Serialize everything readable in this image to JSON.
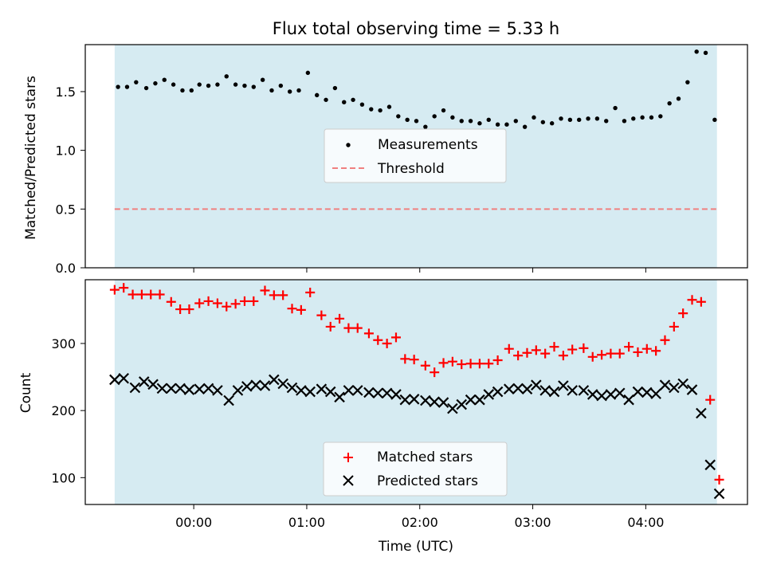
{
  "figure": {
    "title": "Flux total observing time = 5.33 h",
    "xlabel": "Time (UTC)"
  },
  "colors": {
    "shade": "#add8e6",
    "measurements": "#000000",
    "threshold": "#f08080",
    "matched": "#ff0000",
    "predicted": "#000000"
  },
  "chart_data": [
    {
      "type": "scatter",
      "ylabel": "Matched/Predicted stars",
      "x_unit": "hours UTC",
      "xlim": [
        -0.96,
        4.9
      ],
      "ylim": [
        0.0,
        1.9
      ],
      "yticks": [
        0.0,
        0.5,
        1.0,
        1.5
      ],
      "ytick_labels": [
        "0.0",
        "0.5",
        "1.0",
        "1.5"
      ],
      "shaded_span": [
        -0.7,
        4.63
      ],
      "threshold": 0.5,
      "legend": {
        "position": "center",
        "entries": [
          "Measurements",
          "Threshold"
        ]
      },
      "series": [
        {
          "name": "Measurements",
          "marker": "dot",
          "x": [
            -0.67,
            -0.59,
            -0.51,
            -0.42,
            -0.34,
            -0.26,
            -0.18,
            -0.1,
            -0.02,
            0.05,
            0.13,
            0.21,
            0.29,
            0.37,
            0.45,
            0.53,
            0.61,
            0.69,
            0.77,
            0.85,
            0.93,
            1.01,
            1.09,
            1.17,
            1.25,
            1.33,
            1.41,
            1.49,
            1.57,
            1.65,
            1.73,
            1.81,
            1.89,
            1.97,
            2.05,
            2.13,
            2.21,
            2.29,
            2.37,
            2.45,
            2.53,
            2.61,
            2.69,
            2.77,
            2.85,
            2.93,
            3.01,
            3.09,
            3.17,
            3.25,
            3.33,
            3.41,
            3.49,
            3.57,
            3.65,
            3.73,
            3.81,
            3.89,
            3.97,
            4.05,
            4.13,
            4.21,
            4.29,
            4.37,
            4.45,
            4.53,
            4.61
          ],
          "y": [
            1.54,
            1.54,
            1.58,
            1.53,
            1.57,
            1.6,
            1.56,
            1.51,
            1.51,
            1.56,
            1.55,
            1.56,
            1.63,
            1.56,
            1.55,
            1.54,
            1.6,
            1.51,
            1.55,
            1.5,
            1.51,
            1.66,
            1.47,
            1.43,
            1.53,
            1.41,
            1.43,
            1.39,
            1.35,
            1.34,
            1.37,
            1.29,
            1.26,
            1.25,
            1.2,
            1.29,
            1.34,
            1.28,
            1.25,
            1.25,
            1.23,
            1.26,
            1.22,
            1.22,
            1.25,
            1.2,
            1.28,
            1.24,
            1.23,
            1.27,
            1.26,
            1.26,
            1.27,
            1.27,
            1.25,
            1.36,
            1.25,
            1.27,
            1.28,
            1.28,
            1.29,
            1.4,
            1.44,
            1.58,
            1.84,
            1.83,
            1.26
          ]
        },
        {
          "name": "Threshold",
          "style": "dashed",
          "x": [
            -0.7,
            4.63
          ],
          "y": [
            0.5,
            0.5
          ]
        }
      ]
    },
    {
      "type": "scatter",
      "ylabel": "Count",
      "x_unit": "hours UTC",
      "xlim": [
        -0.96,
        4.9
      ],
      "ylim": [
        60,
        395
      ],
      "yticks": [
        100,
        200,
        300
      ],
      "ytick_labels": [
        "100",
        "200",
        "300"
      ],
      "xticks": [
        0,
        1,
        2,
        3,
        4
      ],
      "xtick_labels": [
        "00:00",
        "01:00",
        "02:00",
        "03:00",
        "04:00"
      ],
      "shaded_span": [
        -0.7,
        4.63
      ],
      "legend": {
        "position": "lower center",
        "entries": [
          "Matched stars",
          "Predicted stars"
        ]
      },
      "series": [
        {
          "name": "Matched stars",
          "marker": "plus",
          "x": [
            -0.7,
            -0.62,
            -0.54,
            -0.46,
            -0.38,
            -0.3,
            -0.2,
            -0.12,
            -0.04,
            0.05,
            0.13,
            0.21,
            0.29,
            0.37,
            0.45,
            0.53,
            0.63,
            0.71,
            0.79,
            0.87,
            0.95,
            1.03,
            1.13,
            1.21,
            1.29,
            1.37,
            1.45,
            1.55,
            1.63,
            1.71,
            1.79,
            1.87,
            1.95,
            2.05,
            2.13,
            2.21,
            2.29,
            2.37,
            2.45,
            2.53,
            2.61,
            2.69,
            2.79,
            2.87,
            2.95,
            3.03,
            3.11,
            3.19,
            3.27,
            3.35,
            3.45,
            3.53,
            3.61,
            3.69,
            3.77,
            3.85,
            3.93,
            4.01,
            4.09,
            4.17,
            4.25,
            4.33,
            4.41,
            4.49,
            4.57,
            4.65
          ],
          "y": [
            380,
            383,
            373,
            373,
            373,
            373,
            362,
            351,
            351,
            360,
            363,
            360,
            355,
            359,
            363,
            363,
            379,
            372,
            372,
            352,
            350,
            376,
            342,
            325,
            337,
            323,
            323,
            315,
            305,
            300,
            309,
            277,
            276,
            267,
            257,
            271,
            273,
            269,
            270,
            270,
            270,
            275,
            292,
            282,
            286,
            290,
            285,
            295,
            282,
            291,
            293,
            280,
            283,
            285,
            285,
            295,
            287,
            292,
            289,
            305,
            325,
            345,
            365,
            362,
            216,
            97
          ]
        },
        {
          "name": "Predicted stars",
          "marker": "x",
          "x": [
            -0.7,
            -0.62,
            -0.52,
            -0.44,
            -0.36,
            -0.28,
            -0.2,
            -0.12,
            -0.04,
            0.05,
            0.13,
            0.21,
            0.31,
            0.39,
            0.47,
            0.55,
            0.63,
            0.71,
            0.79,
            0.87,
            0.95,
            1.03,
            1.13,
            1.21,
            1.29,
            1.37,
            1.45,
            1.55,
            1.63,
            1.71,
            1.79,
            1.87,
            1.95,
            2.05,
            2.13,
            2.21,
            2.29,
            2.37,
            2.45,
            2.53,
            2.61,
            2.69,
            2.79,
            2.87,
            2.95,
            3.03,
            3.11,
            3.19,
            3.27,
            3.35,
            3.45,
            3.53,
            3.61,
            3.69,
            3.77,
            3.85,
            3.93,
            4.01,
            4.09,
            4.17,
            4.25,
            4.33,
            4.41,
            4.49,
            4.57,
            4.65
          ],
          "y": [
            246,
            248,
            234,
            243,
            239,
            233,
            233,
            233,
            231,
            232,
            233,
            230,
            215,
            230,
            236,
            238,
            237,
            246,
            240,
            234,
            230,
            228,
            232,
            228,
            220,
            230,
            230,
            227,
            226,
            226,
            224,
            216,
            217,
            215,
            213,
            212,
            203,
            209,
            216,
            216,
            224,
            228,
            232,
            233,
            232,
            238,
            230,
            228,
            237,
            230,
            230,
            224,
            222,
            224,
            226,
            216,
            228,
            227,
            225,
            238,
            234,
            240,
            231,
            196,
            119,
            76
          ]
        }
      ]
    }
  ]
}
